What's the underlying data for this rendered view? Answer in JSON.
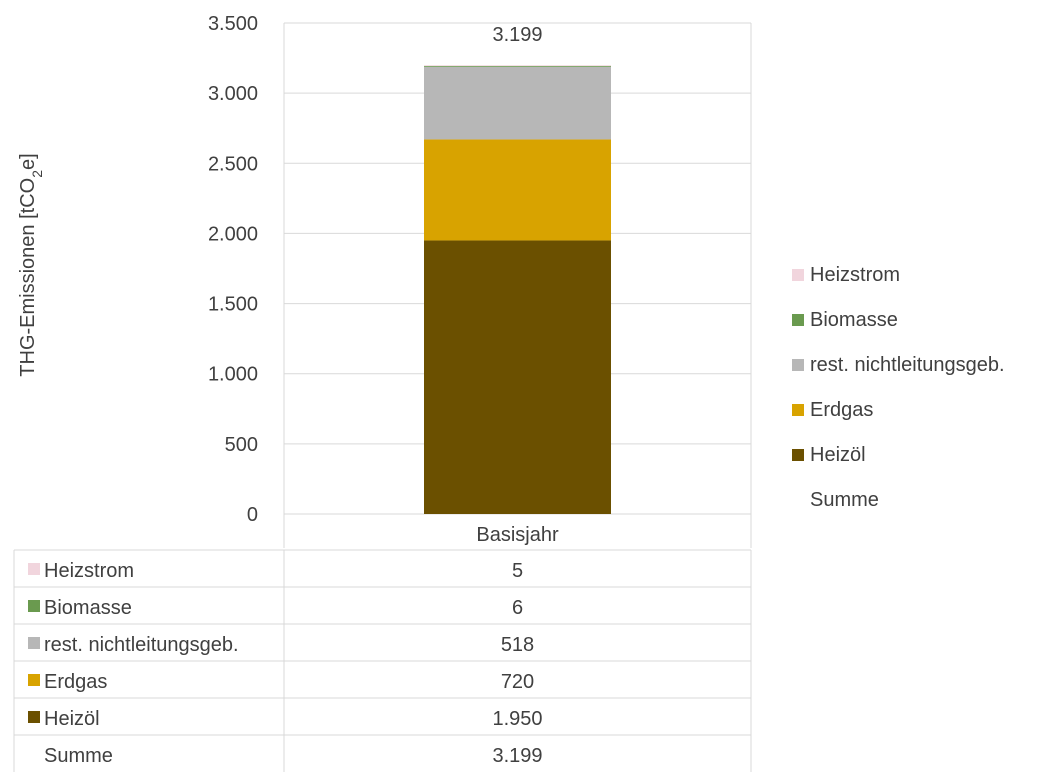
{
  "chart_data": {
    "type": "bar",
    "stacked": true,
    "categories": [
      "Basisjahr"
    ],
    "series": [
      {
        "name": "Heizöl",
        "values": [
          1950
        ],
        "color": "#6b5000"
      },
      {
        "name": "Erdgas",
        "values": [
          720
        ],
        "color": "#d8a300"
      },
      {
        "name": "rest. nichtleitungsgeb.",
        "values": [
          518
        ],
        "color": "#b7b7b7"
      },
      {
        "name": "Biomasse",
        "values": [
          6
        ],
        "color": "#6a9a4f"
      },
      {
        "name": "Heizstrom",
        "values": [
          5
        ],
        "color": "#f1d5dd"
      }
    ],
    "total": {
      "name": "Summe",
      "values": [
        3199
      ],
      "label": "3.199"
    },
    "ylabel": "THG-Emissionen [tCO2e]",
    "ylabel_parts": {
      "pre": "THG-Emissionen [tCO",
      "sub": "2",
      "post": "e]"
    },
    "ylim": [
      0,
      3500
    ],
    "yticks": [
      0,
      500,
      1000,
      1500,
      2000,
      2500,
      3000,
      3500
    ],
    "ytick_labels": [
      "0",
      "500",
      "1.000",
      "1.500",
      "2.000",
      "2.500",
      "3.000",
      "3.500"
    ],
    "legend_position": "right",
    "legend_order": [
      "Heizstrom",
      "Biomasse",
      "rest. nichtleitungsgeb.",
      "Erdgas",
      "Heizöl",
      "Summe"
    ],
    "grid": true,
    "data_table": [
      {
        "label": "Heizstrom",
        "value": "5",
        "color": "#f1d5dd"
      },
      {
        "label": "Biomasse",
        "value": "6",
        "color": "#6a9a4f"
      },
      {
        "label": "rest. nichtleitungsgeb.",
        "value": "518",
        "color": "#b7b7b7"
      },
      {
        "label": "Erdgas",
        "value": "720",
        "color": "#d8a300"
      },
      {
        "label": "Heizöl",
        "value": "1.950",
        "color": "#6b5000"
      },
      {
        "label": "Summe",
        "value": "3.199",
        "color": null
      }
    ]
  }
}
